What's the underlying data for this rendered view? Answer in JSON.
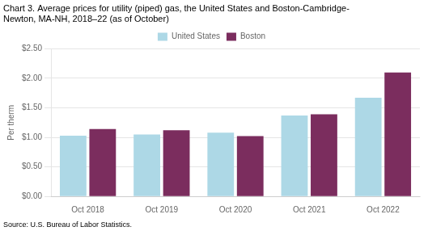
{
  "chart_data": {
    "type": "bar",
    "title": [
      "Chart 3. Average prices for utility (piped) gas, the United States and Boston-Cambridge-",
      "Newton, MA-NH, 2018–22 (as of October)"
    ],
    "ylabel": "Per therm",
    "source": "Source: U.S. Bureau of Labor Statistics.",
    "categories": [
      "Oct 2018",
      "Oct 2019",
      "Oct 2020",
      "Oct 2021",
      "Oct 2022"
    ],
    "series": [
      {
        "name": "United States",
        "color": "#ADD8E6",
        "values": [
          1.03,
          1.05,
          1.08,
          1.37,
          1.67
        ]
      },
      {
        "name": "Boston",
        "color": "#7B2D5E",
        "values": [
          1.14,
          1.12,
          1.02,
          1.39,
          2.1
        ]
      }
    ],
    "ylim": [
      0,
      2.5
    ],
    "yticks": [
      {
        "value": 0,
        "label": "$0.00"
      },
      {
        "value": 0.5,
        "label": "$0.50"
      },
      {
        "value": 1,
        "label": "$1.00"
      },
      {
        "value": 1.5,
        "label": "$1.50"
      },
      {
        "value": 2,
        "label": "$2.00"
      },
      {
        "value": 2.5,
        "label": "$2.50"
      }
    ],
    "grid": true,
    "legend": "top"
  }
}
